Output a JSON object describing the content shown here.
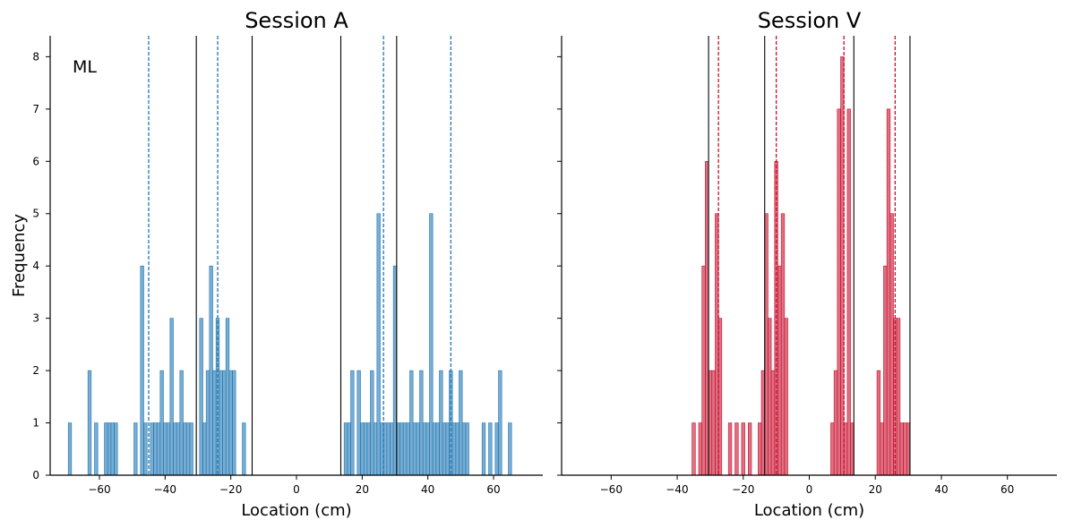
{
  "chart_data": [
    {
      "type": "histogram",
      "title": "Session A",
      "xlabel": "Location (cm)",
      "ylabel": "Frequency",
      "annotation": "ML",
      "xlim": [
        -75,
        75
      ],
      "ylim": [
        0,
        8.4
      ],
      "xticks": [
        -60,
        -40,
        -20,
        0,
        20,
        40,
        60
      ],
      "yticks": [
        0,
        1,
        2,
        3,
        4,
        5,
        6,
        7,
        8
      ],
      "bar_color": "#1f77b4",
      "bar_alpha": 0.6,
      "bin_width": 1,
      "bins": [
        {
          "x": -69,
          "y": 1
        },
        {
          "x": -63,
          "y": 2
        },
        {
          "x": -61,
          "y": 1
        },
        {
          "x": -58,
          "y": 1
        },
        {
          "x": -57,
          "y": 1
        },
        {
          "x": -56,
          "y": 1
        },
        {
          "x": -55,
          "y": 1
        },
        {
          "x": -49,
          "y": 1
        },
        {
          "x": -47,
          "y": 4
        },
        {
          "x": -46,
          "y": 1
        },
        {
          "x": -44,
          "y": 1
        },
        {
          "x": -43,
          "y": 1
        },
        {
          "x": -42,
          "y": 1
        },
        {
          "x": -41,
          "y": 2
        },
        {
          "x": -40,
          "y": 1
        },
        {
          "x": -39,
          "y": 1
        },
        {
          "x": -38,
          "y": 3
        },
        {
          "x": -37,
          "y": 1
        },
        {
          "x": -36,
          "y": 1
        },
        {
          "x": -35,
          "y": 2
        },
        {
          "x": -34,
          "y": 1
        },
        {
          "x": -33,
          "y": 1
        },
        {
          "x": -32,
          "y": 1
        },
        {
          "x": -29,
          "y": 3
        },
        {
          "x": -28,
          "y": 1
        },
        {
          "x": -27,
          "y": 2
        },
        {
          "x": -26,
          "y": 4
        },
        {
          "x": -25,
          "y": 2
        },
        {
          "x": -24,
          "y": 3
        },
        {
          "x": -23,
          "y": 2
        },
        {
          "x": -22,
          "y": 2
        },
        {
          "x": -21,
          "y": 3
        },
        {
          "x": -20,
          "y": 2
        },
        {
          "x": -19,
          "y": 2
        },
        {
          "x": -16,
          "y": 1
        },
        {
          "x": 15,
          "y": 1
        },
        {
          "x": 16,
          "y": 1
        },
        {
          "x": 17,
          "y": 2
        },
        {
          "x": 19,
          "y": 2
        },
        {
          "x": 20,
          "y": 1
        },
        {
          "x": 21,
          "y": 1
        },
        {
          "x": 22,
          "y": 1
        },
        {
          "x": 23,
          "y": 2
        },
        {
          "x": 24,
          "y": 1
        },
        {
          "x": 25,
          "y": 5
        },
        {
          "x": 26,
          "y": 1
        },
        {
          "x": 27,
          "y": 1
        },
        {
          "x": 28,
          "y": 1
        },
        {
          "x": 29,
          "y": 1
        },
        {
          "x": 30,
          "y": 4
        },
        {
          "x": 31,
          "y": 1
        },
        {
          "x": 32,
          "y": 1
        },
        {
          "x": 33,
          "y": 1
        },
        {
          "x": 34,
          "y": 1
        },
        {
          "x": 35,
          "y": 2
        },
        {
          "x": 36,
          "y": 1
        },
        {
          "x": 37,
          "y": 1
        },
        {
          "x": 38,
          "y": 2
        },
        {
          "x": 39,
          "y": 1
        },
        {
          "x": 40,
          "y": 1
        },
        {
          "x": 41,
          "y": 5
        },
        {
          "x": 42,
          "y": 1
        },
        {
          "x": 43,
          "y": 1
        },
        {
          "x": 44,
          "y": 2
        },
        {
          "x": 45,
          "y": 1
        },
        {
          "x": 46,
          "y": 1
        },
        {
          "x": 47,
          "y": 2
        },
        {
          "x": 48,
          "y": 1
        },
        {
          "x": 49,
          "y": 1
        },
        {
          "x": 50,
          "y": 2
        },
        {
          "x": 51,
          "y": 1
        },
        {
          "x": 52,
          "y": 1
        },
        {
          "x": 57,
          "y": 1
        },
        {
          "x": 59,
          "y": 1
        },
        {
          "x": 61,
          "y": 1
        },
        {
          "x": 62,
          "y": 2
        },
        {
          "x": 65,
          "y": 1
        }
      ],
      "solid_lines": [
        -30.5,
        -13.5,
        13.5,
        30.5
      ],
      "dashed_lines": [
        -45,
        -24,
        26.5,
        47
      ],
      "solid_line_color": "#000000",
      "dashed_line_color": "#1f77b4"
    },
    {
      "type": "histogram",
      "title": "Session V",
      "xlabel": "Location (cm)",
      "ylabel": "",
      "xlim": [
        -75,
        75
      ],
      "ylim": [
        0,
        8.4
      ],
      "xticks": [
        -60,
        -40,
        -20,
        0,
        20,
        40,
        60
      ],
      "yticks": [
        0,
        1,
        2,
        3,
        4,
        5,
        6,
        7,
        8
      ],
      "bar_color": "#c8102e",
      "bar_alpha": 0.6,
      "bin_width": 1,
      "bins": [
        {
          "x": -35,
          "y": 1
        },
        {
          "x": -33,
          "y": 1
        },
        {
          "x": -32,
          "y": 4
        },
        {
          "x": -31,
          "y": 6
        },
        {
          "x": -30,
          "y": 2
        },
        {
          "x": -29,
          "y": 2
        },
        {
          "x": -28,
          "y": 5
        },
        {
          "x": -27,
          "y": 3
        },
        {
          "x": -24,
          "y": 1
        },
        {
          "x": -22,
          "y": 1
        },
        {
          "x": -20,
          "y": 1
        },
        {
          "x": -18,
          "y": 1
        },
        {
          "x": -15,
          "y": 1
        },
        {
          "x": -14,
          "y": 2
        },
        {
          "x": -13,
          "y": 5
        },
        {
          "x": -12,
          "y": 3
        },
        {
          "x": -11,
          "y": 2
        },
        {
          "x": -10,
          "y": 6
        },
        {
          "x": -9,
          "y": 4
        },
        {
          "x": -8,
          "y": 5
        },
        {
          "x": -7,
          "y": 3
        },
        {
          "x": 7,
          "y": 1
        },
        {
          "x": 8,
          "y": 2
        },
        {
          "x": 9,
          "y": 7
        },
        {
          "x": 10,
          "y": 8
        },
        {
          "x": 11,
          "y": 1
        },
        {
          "x": 12,
          "y": 7
        },
        {
          "x": 13,
          "y": 1
        },
        {
          "x": 21,
          "y": 2
        },
        {
          "x": 22,
          "y": 1
        },
        {
          "x": 23,
          "y": 4
        },
        {
          "x": 24,
          "y": 7
        },
        {
          "x": 25,
          "y": 5
        },
        {
          "x": 26,
          "y": 3
        },
        {
          "x": 27,
          "y": 3
        },
        {
          "x": 28,
          "y": 1
        },
        {
          "x": 29,
          "y": 1
        },
        {
          "x": 30,
          "y": 1
        }
      ],
      "solid_lines": [
        -30.5,
        -13.5,
        13.5,
        30.5
      ],
      "dashed_lines": [
        -27.5,
        -10,
        10.5,
        26
      ],
      "solid_line_color": "#000000",
      "dashed_line_color": "#c8102e"
    }
  ]
}
